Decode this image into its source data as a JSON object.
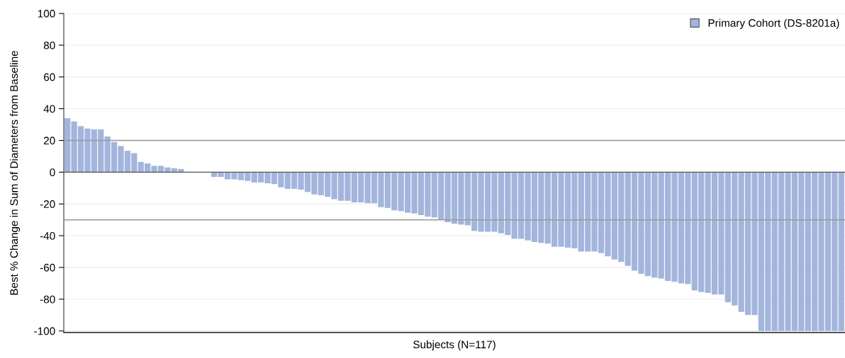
{
  "chart_data": {
    "type": "bar",
    "xlabel": "Subjects (N=117)",
    "ylabel": "Best % Change in Sum of Diameters from Baseline",
    "categories": [
      null,
      null,
      null,
      null,
      null,
      null,
      null,
      null,
      null,
      null,
      null,
      null,
      null,
      null,
      null,
      null,
      null,
      null,
      null,
      null,
      null,
      null,
      null,
      null,
      null,
      null,
      null,
      null,
      null,
      null,
      null,
      null,
      null,
      null,
      null,
      null,
      null,
      null,
      null,
      null,
      null,
      null,
      null,
      null,
      null,
      null,
      null,
      null,
      null,
      null,
      null,
      null,
      null,
      null,
      null,
      null,
      null,
      null,
      null,
      null,
      null,
      null,
      null,
      null,
      null,
      null,
      null,
      null,
      null,
      null,
      null,
      null,
      null,
      null,
      null,
      null,
      null,
      null,
      null,
      null,
      null,
      null,
      null,
      null,
      null,
      null,
      null,
      null,
      null,
      null,
      null,
      null,
      null,
      null,
      null,
      null,
      null,
      null,
      null,
      null,
      null,
      null,
      null,
      null,
      null,
      null,
      null,
      null,
      null,
      null,
      null,
      null,
      null,
      null,
      null,
      null,
      null
    ],
    "series": [
      {
        "name": "Primary Cohort (DS-8201a)",
        "color": "#a3b5dc",
        "values": [
          34,
          32,
          29,
          27.5,
          27,
          27,
          22.5,
          19,
          16.5,
          13.5,
          12,
          6.5,
          5.5,
          4,
          4,
          3,
          2.5,
          2,
          0,
          0,
          0,
          0,
          -3,
          -3,
          -4.5,
          -4.5,
          -5,
          -5.5,
          -6.5,
          -6.5,
          -7,
          -7.5,
          -9.5,
          -10.5,
          -10.5,
          -11,
          -12.5,
          -14,
          -14.5,
          -15.5,
          -17,
          -18,
          -18,
          -19,
          -19,
          -19.5,
          -19.5,
          -22,
          -22.5,
          -24,
          -24.5,
          -25.5,
          -26,
          -27,
          -28,
          -28.5,
          -30,
          -31.5,
          -32.5,
          -33,
          -33.5,
          -37,
          -37.5,
          -37.5,
          -37.5,
          -38.5,
          -39.5,
          -42,
          -42,
          -43,
          -44,
          -44.5,
          -45,
          -47,
          -47,
          -47.5,
          -48,
          -50,
          -50,
          -50,
          -51,
          -53,
          -55,
          -56.5,
          -59,
          -62,
          -64,
          -65.5,
          -66.5,
          -67,
          -68.5,
          -69,
          -70,
          -70.5,
          -74.5,
          -75.5,
          -76,
          -77,
          -77,
          -82,
          -84,
          -88,
          -90,
          -90,
          -100,
          -100,
          -100,
          -100,
          -100,
          -100,
          -100,
          -100,
          -100,
          -100,
          -100,
          -100,
          -100
        ]
      }
    ],
    "ylim": [
      -101,
      100
    ],
    "yticks": [
      -100,
      -80,
      -60,
      -40,
      -20,
      0,
      20,
      40,
      60,
      80,
      100
    ],
    "ref_lines": [
      {
        "axis": "y",
        "value": 20,
        "color": "#999999"
      },
      {
        "axis": "y",
        "value": -30,
        "color": "#999999"
      },
      {
        "axis": "y",
        "value": 0,
        "color": "#555555"
      }
    ],
    "grid": "y",
    "legend": "top right",
    "tick_labels": "y"
  }
}
